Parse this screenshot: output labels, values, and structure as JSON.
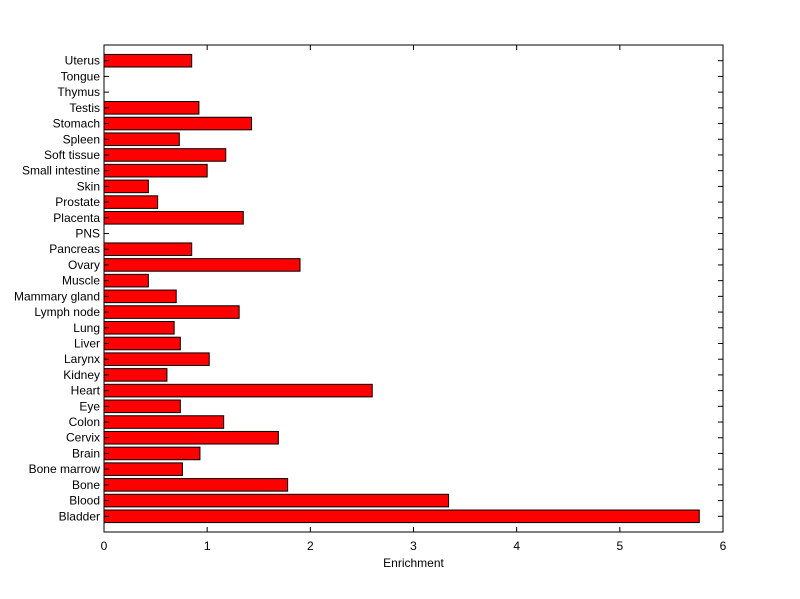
{
  "chart_data": {
    "type": "bar",
    "orientation": "horizontal",
    "categories": [
      "Bladder",
      "Blood",
      "Bone",
      "Bone marrow",
      "Brain",
      "Cervix",
      "Colon",
      "Eye",
      "Heart",
      "Kidney",
      "Larynx",
      "Liver",
      "Lung",
      "Lymph node",
      "Mammary gland",
      "Muscle",
      "Ovary",
      "Pancreas",
      "PNS",
      "Placenta",
      "Prostate",
      "Skin",
      "Small intestine",
      "Soft tissue",
      "Spleen",
      "Stomach",
      "Testis",
      "Thymus",
      "Tongue",
      "Uterus"
    ],
    "values": [
      5.77,
      3.34,
      1.78,
      0.76,
      0.93,
      1.69,
      1.16,
      0.74,
      2.6,
      0.61,
      1.02,
      0.74,
      0.68,
      1.31,
      0.7,
      0.43,
      1.9,
      0.85,
      0,
      1.35,
      0.52,
      0.43,
      1.0,
      1.18,
      0.73,
      1.43,
      0.92,
      0,
      0,
      0.85
    ],
    "xlabel": "Enrichment",
    "ylabel": "",
    "title": "",
    "xlim": [
      0,
      6
    ],
    "xticks": [
      "0",
      "1",
      "2",
      "3",
      "4",
      "5",
      "6"
    ],
    "bar_color": "#ff0000",
    "bar_edge_color": "#000000",
    "grid": false,
    "legend": false
  }
}
